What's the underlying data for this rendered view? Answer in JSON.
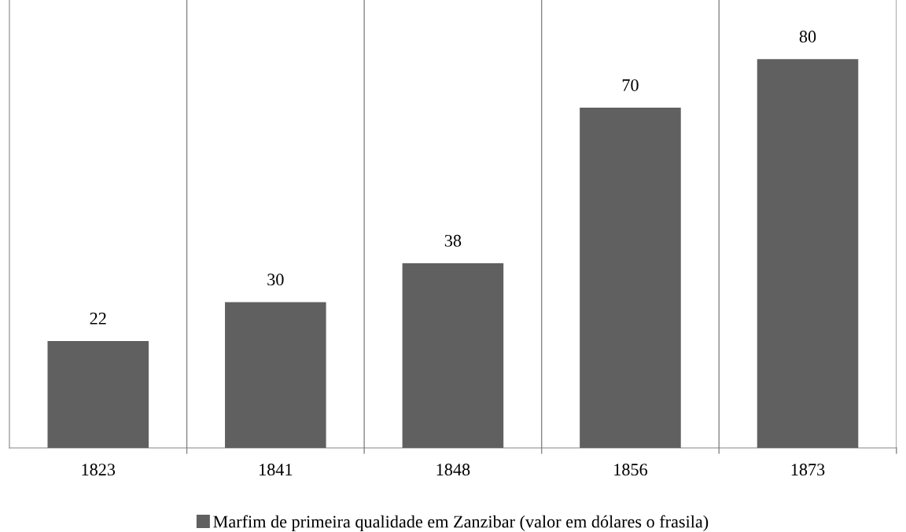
{
  "chart_data": {
    "type": "bar",
    "categories": [
      "1823",
      "1841",
      "1848",
      "1856",
      "1873"
    ],
    "series": [
      {
        "name": "Marfim de primeira qualidade em Zanzibar (valor em dólares o frasila)",
        "color": "#606060",
        "values": [
          22,
          30,
          38,
          70,
          80
        ]
      }
    ],
    "data_labels": true,
    "grid": "x",
    "legend": "bottom"
  }
}
